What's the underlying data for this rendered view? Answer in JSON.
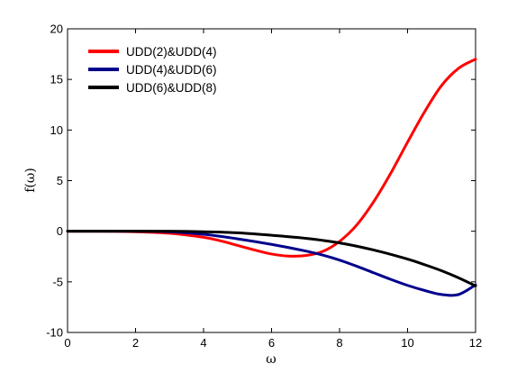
{
  "chart_data": {
    "type": "line",
    "xlabel": "ω",
    "ylabel": "f(ω)",
    "xlim": [
      0,
      12
    ],
    "ylim": [
      -10,
      20
    ],
    "xticks": [
      0,
      2,
      4,
      6,
      8,
      10,
      12
    ],
    "yticks": [
      -10,
      -5,
      0,
      5,
      10,
      15,
      20
    ],
    "grid": false,
    "legend_position": "top-left",
    "series": [
      {
        "name": "UDD(2)&UDD(4)",
        "color": "#ff0000",
        "x": [
          0,
          1,
          2,
          3,
          4,
          4.5,
          5,
          5.5,
          6,
          6.5,
          7,
          7.5,
          8,
          8.5,
          9,
          9.5,
          10,
          10.5,
          11,
          11.5,
          12
        ],
        "y": [
          0,
          0,
          -0.05,
          -0.2,
          -0.6,
          -0.95,
          -1.4,
          -1.85,
          -2.25,
          -2.45,
          -2.4,
          -2.0,
          -1.0,
          0.6,
          2.9,
          5.7,
          8.8,
          11.8,
          14.4,
          16.1,
          17.0
        ]
      },
      {
        "name": "UDD(4)&UDD(6)",
        "color": "#00008b",
        "x": [
          0,
          1,
          2,
          3,
          4,
          5,
          6,
          7,
          7.5,
          8,
          8.5,
          9,
          9.5,
          10,
          10.5,
          11,
          11.5,
          12
        ],
        "y": [
          0,
          0,
          0,
          -0.05,
          -0.3,
          -0.75,
          -1.3,
          -1.95,
          -2.35,
          -2.85,
          -3.45,
          -4.1,
          -4.75,
          -5.35,
          -5.85,
          -6.25,
          -6.25,
          -5.3
        ]
      },
      {
        "name": "UDD(6)&UDD(8)",
        "color": "#000000",
        "x": [
          0,
          1,
          2,
          3,
          4,
          5,
          6,
          7,
          8,
          9,
          10,
          10.5,
          11,
          11.5,
          12
        ],
        "y": [
          0,
          0,
          0,
          0,
          -0.05,
          -0.15,
          -0.4,
          -0.7,
          -1.15,
          -1.85,
          -2.75,
          -3.3,
          -3.9,
          -4.6,
          -5.4
        ]
      }
    ]
  }
}
